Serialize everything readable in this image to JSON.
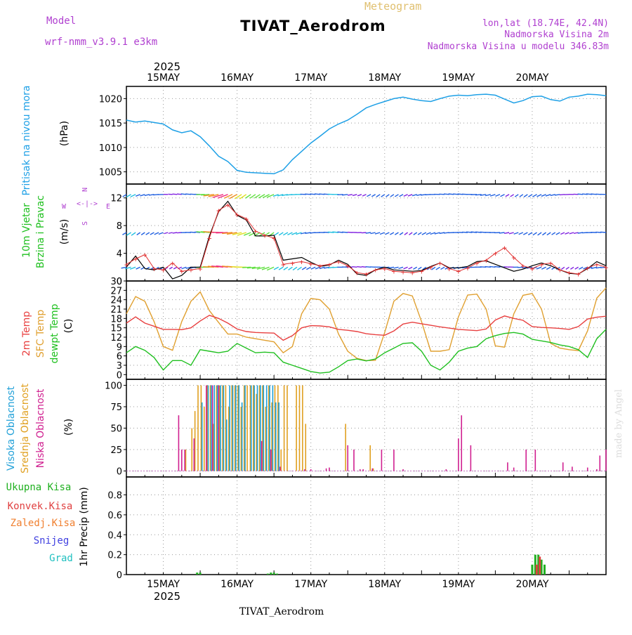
{
  "header": {
    "model_label": "Model",
    "model_name": "wrf-nmm_v3.9.1 e3km",
    "title": "TIVAT_Aerodrom",
    "meteogram": "Meteogram",
    "lonlat": "lon,lat (18.74E, 42.4N)",
    "elev": "Nadmorska Visina 2m",
    "elev_model": "Nadmorska Visina u modelu 346.83m",
    "footer": "TIVAT_Aerodrom",
    "watermark": "made by Angel"
  },
  "colors": {
    "pressure": "#1ea0e6",
    "wind_label": "#20c020",
    "wind_speed10": "#000000",
    "gust": "#e03030",
    "temp2m": "#e84040",
    "sfc_temp": "#e0a030",
    "dewpt": "#20c020",
    "cloud_high": "#20a0d8",
    "cloud_mid": "#e0a020",
    "cloud_low": "#d02090",
    "precip_total": "#20b020",
    "precip_conv": "#e04040",
    "precip_frozen": "#f08030",
    "snow": "#4040e0",
    "graupel": "#20c0c0",
    "purple": "#b040d0",
    "watermark": "#dddddd"
  },
  "time_axis": {
    "days": [
      "15MAY",
      "16MAY",
      "17MAY",
      "18MAY",
      "19MAY",
      "20MAY"
    ],
    "year": "2025",
    "start_hour": 0,
    "end_hour": 156
  },
  "panels": {
    "pressure": {
      "label1": "Pritisak na nivou mora",
      "unit": "(hPa)",
      "ticks": [
        "1005",
        "1010",
        "1015",
        "1020"
      ]
    },
    "wind": {
      "label1": "10m Vjetar",
      "label2": "Brzina i Pravac",
      "unit": "(m/s)",
      "ticks": [
        "0",
        "4",
        "8",
        "12"
      ],
      "compass": {
        "n": "N",
        "w": "W",
        "e": "E",
        "s": "S"
      }
    },
    "temp": {
      "label1": "2m Temp",
      "label2": "SFC Temp",
      "label3": "dewpt Temp",
      "unit": "(C)",
      "ticks": [
        "0",
        "3",
        "6",
        "9",
        "12",
        "15",
        "18",
        "21",
        "24",
        "27",
        "30"
      ]
    },
    "cloud": {
      "label1": "Visoka Oblacnost",
      "label2": "Srednja Oblacnost",
      "label3": "Niska Oblacnost",
      "unit": "(%)",
      "ticks": [
        "0",
        "25",
        "50",
        "75",
        "100"
      ]
    },
    "precip": {
      "label": "1hr Precip (mm)",
      "ticks": [
        "0",
        "0.2",
        "0.4",
        "0.6",
        "0.8"
      ],
      "legend": [
        "Ukupna Kisa",
        "Konvek.Kisa",
        "Zaledj.Kisa",
        "Snijeg",
        "Grad"
      ]
    }
  },
  "chart_data": [
    {
      "type": "line",
      "title": "Pritisak na nivou mora",
      "ylabel": "(hPa)",
      "ylim": [
        1002.5,
        1022.5
      ],
      "x_hours": [
        0,
        3,
        6,
        9,
        12,
        15,
        18,
        21,
        24,
        27,
        30,
        33,
        36,
        39,
        42,
        45,
        48,
        51,
        54,
        57,
        60,
        63,
        66,
        69,
        72,
        75,
        78,
        81,
        84,
        87,
        90,
        93,
        96,
        99,
        102,
        105,
        108,
        111,
        114,
        117,
        120,
        123,
        126,
        129,
        132,
        135,
        138,
        141,
        144,
        147,
        150,
        153,
        156
      ],
      "series": [
        {
          "name": "slp",
          "values": [
            1015.6,
            1015.2,
            1015.4,
            1015.1,
            1014.8,
            1013.6,
            1013.0,
            1013.4,
            1012.2,
            1010.3,
            1008.2,
            1007.1,
            1005.3,
            1004.9,
            1004.8,
            1004.7,
            1004.6,
            1005.4,
            1007.5,
            1009.2,
            1010.9,
            1012.3,
            1013.8,
            1014.8,
            1015.6,
            1016.8,
            1018.1,
            1018.8,
            1019.4,
            1020.0,
            1020.3,
            1019.9,
            1019.6,
            1019.4,
            1020.0,
            1020.5,
            1020.7,
            1020.6,
            1020.8,
            1020.9,
            1020.7,
            1019.9,
            1019.1,
            1019.6,
            1020.4,
            1020.5,
            1019.8,
            1019.5,
            1020.3,
            1020.5,
            1020.9,
            1020.8,
            1020.6
          ]
        }
      ]
    },
    {
      "type": "line",
      "title": "10m Vjetar Brzina i Pravac",
      "ylabel": "(m/s)",
      "ylim": [
        0,
        14
      ],
      "x_hours": [
        0,
        3,
        6,
        9,
        12,
        15,
        18,
        21,
        24,
        27,
        30,
        33,
        36,
        39,
        42,
        45,
        48,
        51,
        54,
        57,
        60,
        63,
        66,
        69,
        72,
        75,
        78,
        81,
        84,
        87,
        90,
        93,
        96,
        99,
        102,
        105,
        108,
        111,
        114,
        117,
        120,
        123,
        126,
        129,
        132,
        135,
        138,
        141,
        144,
        147,
        150,
        153,
        156
      ],
      "series": [
        {
          "name": "10m wind speed",
          "values": [
            2.0,
            3.6,
            1.8,
            1.6,
            2.0,
            0.3,
            0.8,
            2.0,
            2.0,
            6.5,
            10.0,
            11.5,
            9.5,
            8.8,
            6.5,
            6.5,
            6.6,
            3.0,
            3.2,
            3.4,
            2.7,
            2.1,
            2.3,
            3.0,
            2.4,
            1.0,
            0.8,
            1.6,
            2.0,
            1.6,
            1.5,
            1.4,
            1.5,
            2.1,
            2.6,
            1.9,
            1.9,
            2.1,
            2.8,
            2.9,
            2.4,
            1.9,
            1.4,
            1.7,
            2.2,
            2.6,
            2.2,
            1.6,
            1.1,
            1.0,
            1.8,
            2.8,
            2.2
          ]
        },
        {
          "name": "gust",
          "values": [
            2.4,
            3.2,
            3.8,
            1.8,
            1.6,
            2.6,
            1.4,
            1.6,
            1.8,
            6.2,
            10.2,
            11.0,
            9.6,
            9.0,
            7.2,
            6.6,
            6.2,
            2.4,
            2.6,
            2.8,
            2.5,
            2.2,
            2.4,
            2.8,
            2.2,
            1.2,
            1.0,
            1.6,
            1.8,
            1.4,
            1.3,
            1.2,
            1.4,
            2.0,
            2.6,
            1.8,
            1.4,
            1.9,
            2.6,
            3.0,
            4.0,
            4.8,
            3.4,
            2.2,
            1.8,
            2.4,
            2.6,
            1.6,
            1.2,
            1.0,
            1.9,
            2.4,
            2.0
          ]
        }
      ]
    },
    {
      "type": "line",
      "title": "Temperature",
      "ylabel": "(C)",
      "ylim": [
        -1.5,
        30
      ],
      "x_hours": [
        0,
        3,
        6,
        9,
        12,
        15,
        18,
        21,
        24,
        27,
        30,
        33,
        36,
        39,
        42,
        45,
        48,
        51,
        54,
        57,
        60,
        63,
        66,
        69,
        72,
        75,
        78,
        81,
        84,
        87,
        90,
        93,
        96,
        99,
        102,
        105,
        108,
        111,
        114,
        117,
        120,
        123,
        126,
        129,
        132,
        135,
        138,
        141,
        144,
        147,
        150,
        153,
        156
      ],
      "series": [
        {
          "name": "2m Temp",
          "values": [
            16.5,
            18.5,
            16.5,
            15.5,
            14.5,
            14.5,
            14.4,
            15.0,
            17.2,
            19.0,
            18.0,
            16.5,
            14.6,
            13.8,
            13.5,
            13.4,
            13.3,
            11.0,
            12.5,
            15.0,
            15.7,
            15.6,
            15.3,
            14.5,
            14.2,
            13.8,
            13.1,
            12.8,
            12.6,
            14.0,
            16.2,
            16.8,
            16.3,
            15.8,
            15.3,
            14.9,
            14.5,
            14.3,
            14.1,
            14.6,
            17.5,
            18.8,
            18.0,
            17.4,
            15.4,
            15.1,
            15.0,
            14.8,
            14.5,
            15.4,
            17.8,
            18.4,
            18.7
          ]
        },
        {
          "name": "SFC Temp",
          "values": [
            19.5,
            25.0,
            23.5,
            17.0,
            9.0,
            7.8,
            17.0,
            23.5,
            26.5,
            20.5,
            16.7,
            13.0,
            13.0,
            12.0,
            11.5,
            11.0,
            10.5,
            7.0,
            9.0,
            19.5,
            24.4,
            24.0,
            21.0,
            13.0,
            7.5,
            5.2,
            4.5,
            4.6,
            13.5,
            23.5,
            26.0,
            25.2,
            17.0,
            7.5,
            7.5,
            8.0,
            18.5,
            25.5,
            25.8,
            21.0,
            9.2,
            8.8,
            19.5,
            25.4,
            26.0,
            21.0,
            10.0,
            8.5,
            8.0,
            7.7,
            14.0,
            24.5,
            27.8
          ]
        },
        {
          "name": "dewpt Temp",
          "values": [
            7.0,
            9.0,
            7.8,
            5.5,
            1.5,
            4.5,
            4.5,
            3.0,
            8.0,
            7.5,
            7.0,
            7.5,
            10.0,
            8.5,
            7.0,
            7.2,
            7.0,
            4.0,
            3.0,
            2.0,
            1.0,
            0.5,
            0.8,
            2.5,
            4.5,
            5.0,
            4.4,
            5.0,
            7.0,
            8.5,
            10.0,
            10.2,
            7.5,
            3.0,
            1.5,
            4.0,
            7.5,
            8.5,
            9.0,
            11.5,
            12.5,
            13.2,
            13.5,
            13.0,
            11.3,
            10.8,
            10.3,
            9.5,
            9.0,
            8.0,
            5.5,
            11.5,
            14.5
          ]
        }
      ]
    },
    {
      "type": "bar",
      "title": "Oblacnost",
      "ylabel": "(%)",
      "ylim": [
        -7,
        107
      ],
      "series": [
        {
          "name": "Niska Oblacnost",
          "hours": [
            17,
            18,
            19,
            22,
            26,
            28,
            30,
            44,
            47,
            50,
            58,
            60,
            65,
            66,
            72,
            74,
            76,
            77,
            80,
            83,
            87,
            90,
            104,
            108,
            109,
            112,
            124,
            126,
            130,
            133,
            142,
            145,
            150,
            153,
            154,
            156
          ],
          "values": [
            65,
            25,
            25,
            38,
            100,
            100,
            100,
            35,
            25,
            5,
            2,
            2,
            3,
            4,
            30,
            25,
            2,
            2,
            3,
            25,
            25,
            2,
            2,
            38,
            65,
            30,
            10,
            4,
            25,
            25,
            10,
            5,
            4,
            2,
            18,
            25
          ]
        },
        {
          "name": "Srednja Oblacnost",
          "hours": [
            19,
            21,
            22,
            23,
            24,
            25,
            26,
            27,
            28,
            29,
            30,
            31,
            32,
            33,
            34,
            35,
            36,
            37,
            38,
            39,
            40,
            41,
            42,
            43,
            44,
            45,
            46,
            47,
            48,
            49,
            50,
            51,
            52,
            55,
            56,
            57,
            58,
            71,
            79,
            80
          ],
          "values": [
            25,
            50,
            70,
            100,
            100,
            75,
            100,
            100,
            55,
            100,
            100,
            100,
            100,
            75,
            100,
            100,
            100,
            75,
            100,
            100,
            100,
            100,
            90,
            100,
            100,
            75,
            100,
            80,
            100,
            100,
            25,
            100,
            100,
            100,
            100,
            100,
            55,
            55,
            30,
            3
          ]
        },
        {
          "name": "Visoka Oblacnost",
          "hours": [
            24,
            26,
            27,
            28,
            29,
            30,
            31,
            32,
            33,
            34,
            35,
            36,
            37,
            38,
            40,
            41,
            42,
            43,
            44,
            45,
            46,
            47,
            48,
            49
          ],
          "values": [
            80,
            100,
            100,
            100,
            100,
            100,
            100,
            60,
            100,
            100,
            100,
            100,
            80,
            100,
            100,
            100,
            100,
            100,
            100,
            100,
            100,
            100,
            80,
            80
          ]
        }
      ]
    },
    {
      "type": "bar",
      "title": "1hr Precip",
      "ylabel": "(mm)",
      "ylim": [
        0,
        0.98
      ],
      "series": [
        {
          "name": "Ukupna Kisa",
          "hours": [
            23,
            24,
            46,
            47,
            48,
            49,
            132,
            133,
            134,
            135,
            136
          ],
          "values": [
            0.02,
            0.02,
            0.01,
            0.02,
            0.02,
            0.01,
            0.1,
            0.2,
            0.2,
            0.15,
            0.1
          ]
        },
        {
          "name": "Konvek.Kisa",
          "hours": [
            133,
            134
          ],
          "values": [
            0.1,
            0.18
          ]
        },
        {
          "name": "Zaledj.Kisa",
          "hours": [],
          "values": []
        },
        {
          "name": "Snijeg",
          "hours": [],
          "values": []
        },
        {
          "name": "Grad",
          "hours": [],
          "values": []
        }
      ]
    }
  ]
}
